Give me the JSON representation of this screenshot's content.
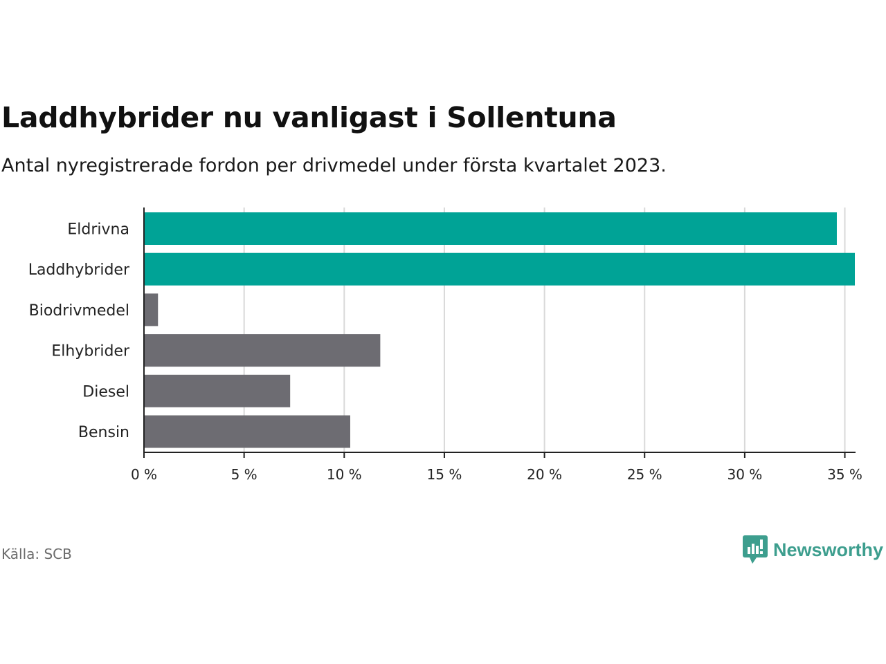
{
  "title": "Laddhybrider nu vanligast i Sollentuna",
  "subtitle": "Antal nyregistrerade fordon per drivmedel under första kvartalet 2023.",
  "source": "Källa: SCB",
  "brand": "Newsworthy",
  "colors": {
    "highlight": "#00a396",
    "default": "#6d6c72",
    "grid": "#d9d9d9",
    "brand": "#3d9e8e"
  },
  "chart_data": {
    "type": "bar",
    "orientation": "horizontal",
    "title": "Laddhybrider nu vanligast i Sollentuna",
    "xlabel": "",
    "ylabel": "",
    "categories": [
      "Eldrivna",
      "Laddhybrider",
      "Biodrivmedel",
      "Elhybrider",
      "Diesel",
      "Bensin"
    ],
    "values": [
      34.6,
      35.5,
      0.7,
      11.8,
      7.3,
      10.3
    ],
    "highlighted": [
      true,
      true,
      false,
      false,
      false,
      false
    ],
    "unit": "%",
    "xlim": [
      0,
      35.5
    ],
    "ticks": [
      0,
      5,
      10,
      15,
      20,
      25,
      30,
      35
    ],
    "tick_labels": [
      "0 %",
      "5 %",
      "10 %",
      "15 %",
      "20 %",
      "25 %",
      "30 %",
      "35 %"
    ],
    "grid": true
  }
}
